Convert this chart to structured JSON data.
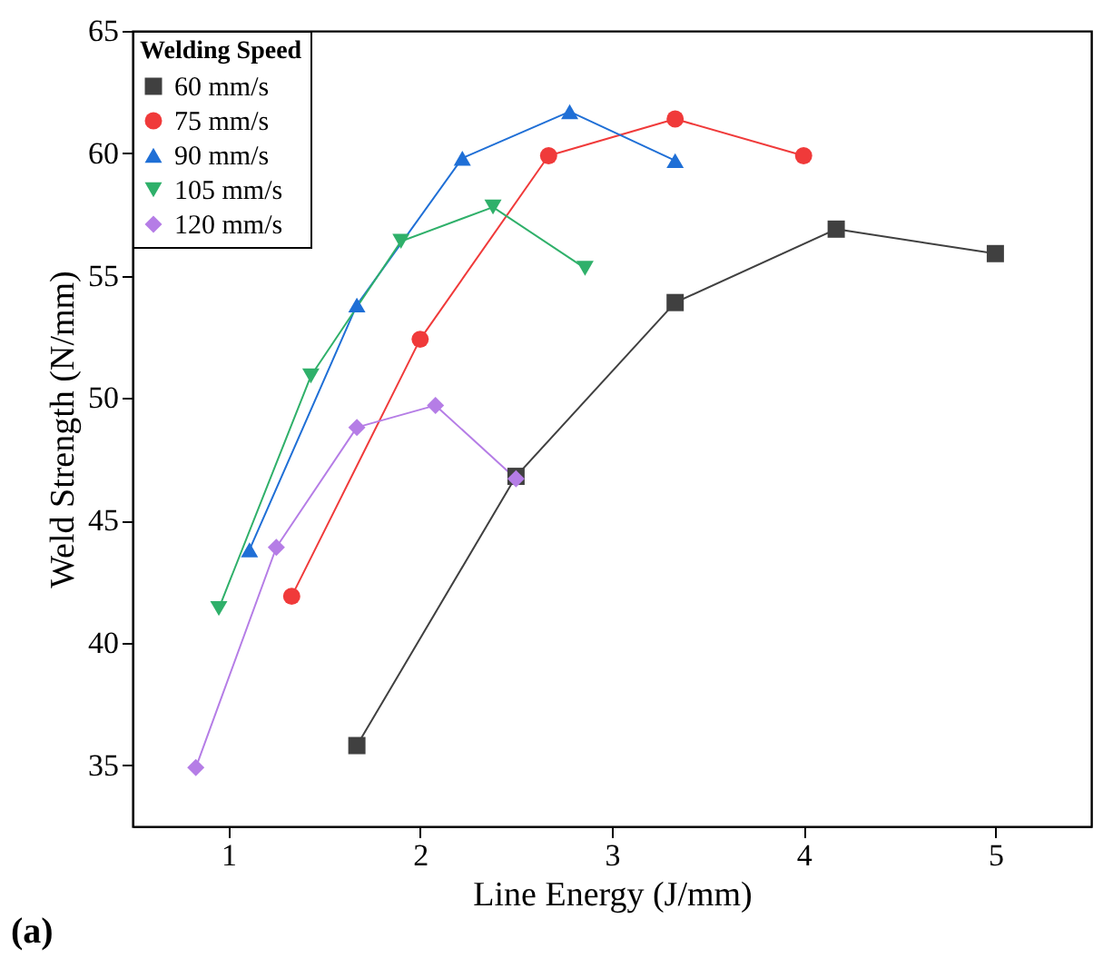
{
  "chart_data": {
    "type": "line",
    "xlabel": "Line Energy (J/mm)",
    "ylabel": "Weld Strength (N/mm)",
    "legend_title": "Welding Speed",
    "legend": "top left",
    "grid": false,
    "xlim": [
      0.5,
      5.5
    ],
    "xticks": [
      1,
      2,
      3,
      4,
      5
    ],
    "ylim": [
      32.5,
      65
    ],
    "yticks": [
      35,
      40,
      45,
      50,
      55,
      60,
      65
    ],
    "annotations": [
      "(a)"
    ],
    "series": [
      {
        "name": "60 mm/s",
        "color": "#404040",
        "marker": "square",
        "x": [
          1.67,
          2.5,
          3.33,
          4.17,
          5
        ],
        "values": [
          35.8,
          46.8,
          53.9,
          56.9,
          55.9
        ]
      },
      {
        "name": "75 mm/s",
        "color": "#f03a3a",
        "marker": "circle",
        "x": [
          1.33,
          2.0,
          2.67,
          3.33,
          4.0
        ],
        "values": [
          41.9,
          52.4,
          59.9,
          61.4,
          59.9
        ]
      },
      {
        "name": "90 mm/s",
        "color": "#1f6fd6",
        "marker": "triangle",
        "x": [
          1.11,
          1.67,
          2.22,
          2.78,
          3.33
        ],
        "values": [
          43.8,
          53.8,
          59.8,
          61.7,
          59.7
        ]
      },
      {
        "name": "105 mm/s",
        "color": "#2fb06a",
        "marker": "triangle-down",
        "x": [
          0.95,
          1.43,
          1.9,
          2.38,
          2.86
        ],
        "values": [
          41.4,
          50.9,
          56.4,
          57.8,
          55.3
        ]
      },
      {
        "name": "120 mm/s",
        "color": "#b57de6",
        "marker": "diamond",
        "x": [
          0.83,
          1.25,
          1.67,
          2.08,
          2.5
        ],
        "values": [
          34.9,
          43.9,
          48.8,
          49.7,
          46.7
        ]
      }
    ]
  }
}
